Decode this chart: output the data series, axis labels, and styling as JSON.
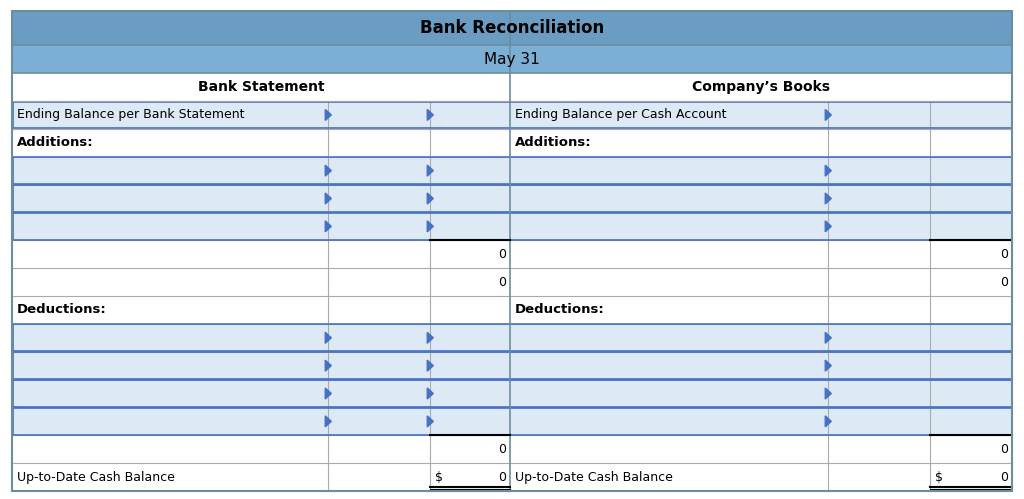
{
  "title": "Bank Reconciliation",
  "subtitle": "May 31",
  "header_bg": "#6B9DC2",
  "subtitle_bg": "#7BAFD4",
  "white_bg": "#FFFFFF",
  "light_blue_row_fill": "#DDEAF6",
  "blue_border": "#4472C4",
  "outer_border_color": "#8AABB0",
  "inner_line_color": "#AAAAAA",
  "left_header": "Bank Statement",
  "right_header": "Company’s Books",
  "row1_left": "Ending Balance per Bank Statement",
  "row1_right": "Ending Balance per Cash Account",
  "additions_label": "Additions:",
  "deductions_label": "Deductions:",
  "uptodate_label": "Up-to-Date Cash Balance",
  "zero_val": "0",
  "dollar_sign": "$",
  "fig_w": 10.24,
  "fig_h": 4.99,
  "dpi": 100
}
